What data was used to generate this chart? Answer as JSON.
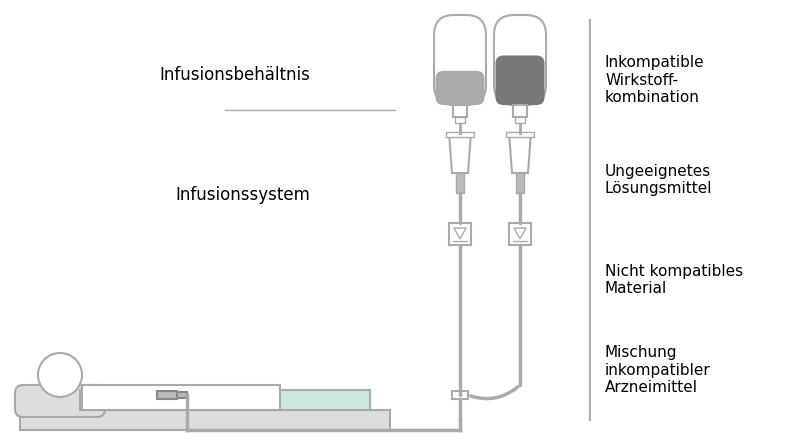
{
  "bg_color": "#ffffff",
  "line_color": "#aaaaaa",
  "dark_gray": "#888888",
  "mid_gray": "#999999",
  "light_gray": "#bbbbbb",
  "lighter_gray": "#cccccc",
  "bag1_liquid": "#aaaaaa",
  "bag2_liquid": "#777777",
  "patient_fill": "#eeeeee",
  "bed_color": "#dddddd",
  "teal_fill": "#c8e8e0",
  "label_left1": "Infusionsbehältnis",
  "label_left2": "Infusionssystem",
  "label_right1": "Inkompatible\nWirkstoff-\nkombination",
  "label_right2": "Ungeeignetes\nLösungsmittel",
  "label_right3": "Nicht kompatibles\nMaterial",
  "label_right4": "Mischung\ninkompatibler\nArzneimittel",
  "font_size_labels": 11,
  "fig_width": 8.0,
  "fig_height": 4.4
}
